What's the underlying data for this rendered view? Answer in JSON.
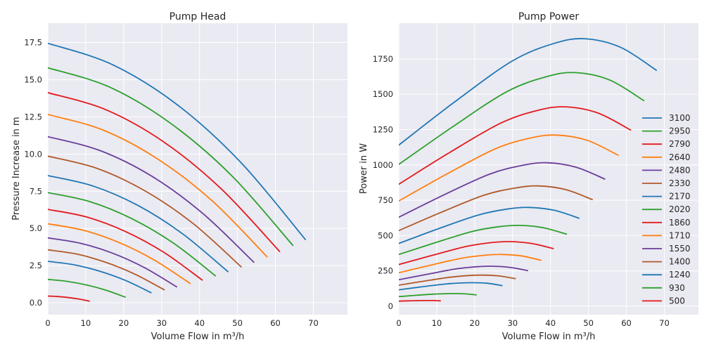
{
  "chart_data": [
    {
      "type": "line",
      "title": "Pump Head",
      "xlabel": "Volume Flow in m³/h",
      "ylabel": "Pressure Increase in m",
      "xlim": [
        0,
        79
      ],
      "ylim": [
        -0.8,
        18.8
      ],
      "xticks": [
        0,
        10,
        20,
        30,
        40,
        50,
        60,
        70
      ],
      "xtick_labels": [
        "0",
        "10",
        "20",
        "30",
        "40",
        "50",
        "60",
        "70"
      ],
      "yticks": [
        0,
        2.5,
        5,
        7.5,
        10,
        12.5,
        15,
        17.5
      ],
      "ytick_labels": [
        "0.0",
        "2.5",
        "5.0",
        "7.5",
        "10.0",
        "12.5",
        "15.0",
        "17.5"
      ],
      "grid": true,
      "background": "#EAEAF2",
      "series": [
        {
          "speed": "3100",
          "color": "#1f77b4",
          "points": [
            [
              0,
              17.45
            ],
            [
              17.0,
              16.02
            ],
            [
              34.0,
              13.34
            ],
            [
              50.9,
              9.43
            ],
            [
              67.9,
              4.26
            ]
          ]
        },
        {
          "speed": "2950",
          "color": "#2ca02c",
          "points": [
            [
              0,
              15.8
            ],
            [
              16.2,
              14.51
            ],
            [
              32.3,
              12.08
            ],
            [
              48.5,
              8.54
            ],
            [
              64.6,
              3.86
            ]
          ]
        },
        {
          "speed": "2790",
          "color": "#e31a1c",
          "points": [
            [
              0,
              14.13
            ],
            [
              15.3,
              12.98
            ],
            [
              30.6,
              10.81
            ],
            [
              45.8,
              7.64
            ],
            [
              61.1,
              3.45
            ]
          ]
        },
        {
          "speed": "2640",
          "color": "#ff7f0e",
          "points": [
            [
              0,
              12.66
            ],
            [
              14.5,
              11.62
            ],
            [
              28.9,
              9.68
            ],
            [
              43.4,
              6.84
            ],
            [
              57.8,
              3.09
            ]
          ]
        },
        {
          "speed": "2480",
          "color": "#6a3d9a",
          "points": [
            [
              0,
              11.17
            ],
            [
              13.6,
              10.25
            ],
            [
              27.2,
              8.54
            ],
            [
              40.7,
              6.04
            ],
            [
              54.3,
              2.73
            ]
          ]
        },
        {
          "speed": "2330",
          "color": "#b15928",
          "points": [
            [
              0,
              9.86
            ],
            [
              12.8,
              9.05
            ],
            [
              25.5,
              7.54
            ],
            [
              38.3,
              5.33
            ],
            [
              51.0,
              2.41
            ]
          ]
        },
        {
          "speed": "2170",
          "color": "#1f77b4",
          "points": [
            [
              0,
              8.55
            ],
            [
              11.9,
              7.85
            ],
            [
              23.8,
              6.54
            ],
            [
              35.6,
              4.62
            ],
            [
              47.5,
              2.09
            ]
          ]
        },
        {
          "speed": "2020",
          "color": "#2ca02c",
          "points": [
            [
              0,
              7.41
            ],
            [
              11.1,
              6.8
            ],
            [
              22.1,
              5.66
            ],
            [
              33.2,
              4.0
            ],
            [
              44.2,
              1.81
            ]
          ]
        },
        {
          "speed": "1860",
          "color": "#e31a1c",
          "points": [
            [
              0,
              6.28
            ],
            [
              10.2,
              5.77
            ],
            [
              20.4,
              4.8
            ],
            [
              30.6,
              3.39
            ],
            [
              40.7,
              1.53
            ]
          ]
        },
        {
          "speed": "1710",
          "color": "#ff7f0e",
          "points": [
            [
              0,
              5.31
            ],
            [
              9.4,
              4.87
            ],
            [
              18.7,
              4.06
            ],
            [
              28.1,
              2.87
            ],
            [
              37.5,
              1.3
            ]
          ]
        },
        {
          "speed": "1550",
          "color": "#6a3d9a",
          "points": [
            [
              0,
              4.36
            ],
            [
              8.5,
              4.01
            ],
            [
              17.0,
              3.34
            ],
            [
              25.5,
              2.36
            ],
            [
              33.95,
              1.07
            ]
          ]
        },
        {
          "speed": "1400",
          "color": "#b15928",
          "points": [
            [
              0,
              3.56
            ],
            [
              7.7,
              3.27
            ],
            [
              15.3,
              2.72
            ],
            [
              23.0,
              1.92
            ],
            [
              30.7,
              0.87
            ]
          ]
        },
        {
          "speed": "1240",
          "color": "#1f77b4",
          "points": [
            [
              0,
              2.79
            ],
            [
              6.8,
              2.56
            ],
            [
              13.6,
              2.13
            ],
            [
              20.4,
              1.51
            ],
            [
              27.2,
              0.68
            ]
          ]
        },
        {
          "speed": "930",
          "color": "#2ca02c",
          "points": [
            [
              0,
              1.57
            ],
            [
              5.1,
              1.44
            ],
            [
              10.2,
              1.2
            ],
            [
              15.3,
              0.85
            ],
            [
              20.4,
              0.38
            ]
          ]
        },
        {
          "speed": "500",
          "color": "#e31a1c",
          "points": [
            [
              0,
              0.45
            ],
            [
              2.7,
              0.42
            ],
            [
              5.5,
              0.35
            ],
            [
              8.2,
              0.25
            ],
            [
              10.95,
              0.11
            ]
          ]
        }
      ]
    },
    {
      "type": "line",
      "title": "Pump Power",
      "xlabel": "Volume Flow in m³/h",
      "ylabel": "Power in W",
      "xlim": [
        0,
        79
      ],
      "ylim": [
        -60,
        2003
      ],
      "xticks": [
        0,
        10,
        20,
        30,
        40,
        50,
        60,
        70
      ],
      "xtick_labels": [
        "0",
        "10",
        "20",
        "30",
        "40",
        "50",
        "60",
        "70"
      ],
      "yticks": [
        0,
        250,
        500,
        750,
        1000,
        1250,
        1500,
        1750
      ],
      "ytick_labels": [
        "0",
        "250",
        "500",
        "750",
        "1000",
        "1250",
        "1500",
        "1750"
      ],
      "grid": true,
      "background": "#EAEAF2",
      "legend": "right",
      "series": [
        {
          "name": "3100",
          "color": "#1f77b4",
          "points": [
            [
              0,
              1140
            ],
            [
              14.9,
              1449
            ],
            [
              29.9,
              1735
            ],
            [
              40.7,
              1858
            ],
            [
              48.9,
              1893
            ],
            [
              58.4,
              1833
            ],
            [
              67.9,
              1670
            ]
          ]
        },
        {
          "name": "2950",
          "color": "#2ca02c",
          "points": [
            [
              0,
              1004
            ],
            [
              14.2,
              1270
            ],
            [
              28.4,
              1517
            ],
            [
              38.8,
              1623
            ],
            [
              46.5,
              1653
            ],
            [
              55.6,
              1601
            ],
            [
              64.6,
              1455
            ]
          ]
        },
        {
          "name": "2790",
          "color": "#e31a1c",
          "points": [
            [
              0,
              863
            ],
            [
              13.4,
              1088
            ],
            [
              26.9,
              1296
            ],
            [
              36.7,
              1386
            ],
            [
              44.0,
              1411
            ],
            [
              52.5,
              1367
            ],
            [
              61.1,
              1247
            ]
          ]
        },
        {
          "name": "2640",
          "color": "#ff7f0e",
          "points": [
            [
              0,
              745
            ],
            [
              12.7,
              936
            ],
            [
              25.4,
              1113
            ],
            [
              34.7,
              1190
            ],
            [
              41.6,
              1211
            ],
            [
              49.7,
              1174
            ],
            [
              57.8,
              1069
            ]
          ]
        },
        {
          "name": "2480",
          "color": "#6a3d9a",
          "points": [
            [
              0,
              630
            ],
            [
              11.9,
              788
            ],
            [
              23.9,
              934
            ],
            [
              32.6,
              997
            ],
            [
              39.1,
              1015
            ],
            [
              46.7,
              984
            ],
            [
              54.3,
              900
            ]
          ]
        },
        {
          "name": "2330",
          "color": "#b15928",
          "points": [
            [
              0,
              535
            ],
            [
              11.2,
              665
            ],
            [
              22.4,
              785
            ],
            [
              30.6,
              836
            ],
            [
              36.7,
              851
            ],
            [
              43.9,
              826
            ],
            [
              51.0,
              755
            ]
          ]
        },
        {
          "name": "2170",
          "color": "#1f77b4",
          "points": [
            [
              0,
              444
            ],
            [
              10.5,
              549
            ],
            [
              20.9,
              645
            ],
            [
              28.5,
              687
            ],
            [
              34.2,
              699
            ],
            [
              40.9,
              679
            ],
            [
              47.5,
              623
            ]
          ]
        },
        {
          "name": "2020",
          "color": "#2ca02c",
          "points": [
            [
              0,
              366
            ],
            [
              9.7,
              450
            ],
            [
              19.4,
              529
            ],
            [
              26.5,
              563
            ],
            [
              31.8,
              572
            ],
            [
              38.0,
              556
            ],
            [
              44.2,
              510
            ]
          ]
        },
        {
          "name": "1860",
          "color": "#e31a1c",
          "points": [
            [
              0,
              295
            ],
            [
              9.0,
              361
            ],
            [
              17.9,
              423
            ],
            [
              24.4,
              450
            ],
            [
              29.3,
              457
            ],
            [
              35.0,
              444
            ],
            [
              40.7,
              408
            ]
          ]
        },
        {
          "name": "1710",
          "color": "#ff7f0e",
          "points": [
            [
              0,
              237
            ],
            [
              8.3,
              290
            ],
            [
              16.5,
              339
            ],
            [
              22.5,
              360
            ],
            [
              27.0,
              366
            ],
            [
              32.3,
              356
            ],
            [
              37.5,
              325
            ]
          ]
        },
        {
          "name": "1550",
          "color": "#6a3d9a",
          "points": [
            [
              0,
              187
            ],
            [
              7.5,
              226
            ],
            [
              14.9,
              263
            ],
            [
              20.4,
              279
            ],
            [
              24.4,
              283
            ],
            [
              29.2,
              275
            ],
            [
              33.95,
              252
            ]
          ]
        },
        {
          "name": "1400",
          "color": "#b15928",
          "points": [
            [
              0,
              149
            ],
            [
              6.8,
              178
            ],
            [
              13.5,
              205
            ],
            [
              18.4,
              217
            ],
            [
              22.1,
              220
            ],
            [
              26.4,
              214
            ],
            [
              30.7,
              195
            ]
          ]
        },
        {
          "name": "1240",
          "color": "#1f77b4",
          "points": [
            [
              0,
              116
            ],
            [
              6.0,
              137
            ],
            [
              12.0,
              156
            ],
            [
              16.3,
              164
            ],
            [
              19.6,
              166
            ],
            [
              23.4,
              162
            ],
            [
              27.2,
              146
            ]
          ]
        },
        {
          "name": "930",
          "color": "#2ca02c",
          "points": [
            [
              0,
              68
            ],
            [
              4.5,
              77
            ],
            [
              9.0,
              85
            ],
            [
              12.2,
              88
            ],
            [
              14.7,
              89
            ],
            [
              17.5,
              87
            ],
            [
              20.4,
              80
            ]
          ]
        },
        {
          "name": "500",
          "color": "#e31a1c",
          "points": [
            [
              0,
              36
            ],
            [
              2.4,
              38
            ],
            [
              4.8,
              39
            ],
            [
              6.6,
              40
            ],
            [
              7.9,
              40
            ],
            [
              9.4,
              40
            ],
            [
              10.95,
              38
            ]
          ]
        }
      ]
    }
  ]
}
